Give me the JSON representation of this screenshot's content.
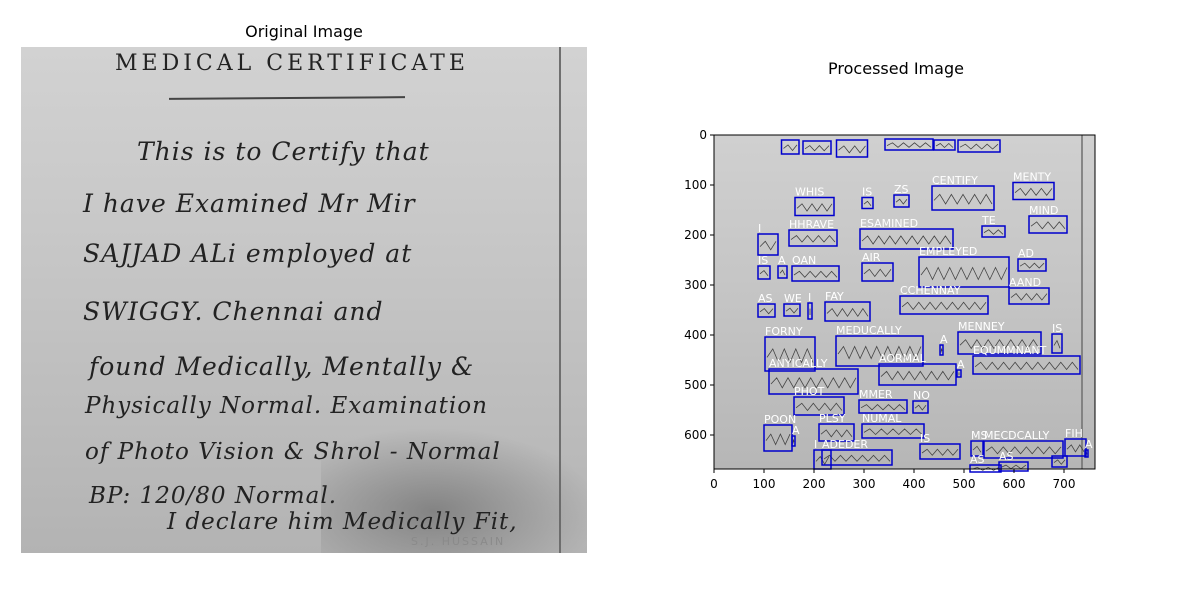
{
  "left_panel": {
    "title": "Original Image",
    "document": {
      "heading": "MEDICAL CERTIFICATE",
      "lines": [
        "This is to Certify that",
        "I have Examined Mr Mir",
        "SAJJAD ALi employed at",
        "SWIGGY. Chennai and",
        "found Medically, Mentally &",
        "Physically Normal. Examination",
        "of Photo Vision & Shrol - Normal",
        "BP: 120/80 Normal.",
        "I declare him Medically Fit,"
      ],
      "stamp": "S.J. HUSSAIN"
    }
  },
  "right_panel": {
    "title": "Processed Image",
    "x_ticks": [
      "0",
      "100",
      "200",
      "300",
      "400",
      "500",
      "600",
      "700"
    ],
    "y_ticks": [
      "0",
      "100",
      "200",
      "300",
      "400",
      "500",
      "600"
    ],
    "detections": [
      {
        "label": "",
        "x": 135,
        "y": 10,
        "w": 35,
        "h": 28
      },
      {
        "label": "",
        "x": 178,
        "y": 12,
        "w": 56,
        "h": 26
      },
      {
        "label": "",
        "x": 245,
        "y": 10,
        "w": 62,
        "h": 34
      },
      {
        "label": "",
        "x": 342,
        "y": 8,
        "w": 96,
        "h": 22
      },
      {
        "label": "",
        "x": 440,
        "y": 10,
        "w": 42,
        "h": 20
      },
      {
        "label": "",
        "x": 488,
        "y": 10,
        "w": 84,
        "h": 24
      },
      {
        "label": "WHIS",
        "x": 162,
        "y": 125,
        "w": 78,
        "h": 36
      },
      {
        "label": "IS",
        "x": 296,
        "y": 125,
        "w": 22,
        "h": 22
      },
      {
        "label": "ZS",
        "x": 360,
        "y": 120,
        "w": 30,
        "h": 24
      },
      {
        "label": "CENTIFY",
        "x": 436,
        "y": 102,
        "w": 124,
        "h": 48
      },
      {
        "label": "MENTY",
        "x": 598,
        "y": 95,
        "w": 82,
        "h": 34
      },
      {
        "label": "HHRAVE",
        "x": 150,
        "y": 190,
        "w": 96,
        "h": 32
      },
      {
        "label": "ESAMINED",
        "x": 292,
        "y": 188,
        "w": 186,
        "h": 40
      },
      {
        "label": "TE",
        "x": 536,
        "y": 182,
        "w": 46,
        "h": 22
      },
      {
        "label": "MIND",
        "x": 630,
        "y": 162,
        "w": 76,
        "h": 34
      },
      {
        "label": "I",
        "x": 88,
        "y": 198,
        "w": 40,
        "h": 42
      },
      {
        "label": "IS",
        "x": 88,
        "y": 262,
        "w": 24,
        "h": 26
      },
      {
        "label": "A",
        "x": 128,
        "y": 262,
        "w": 18,
        "h": 24
      },
      {
        "label": "OAN",
        "x": 156,
        "y": 262,
        "w": 94,
        "h": 30
      },
      {
        "label": "AIR",
        "x": 296,
        "y": 256,
        "w": 62,
        "h": 36
      },
      {
        "label": "EMPLEYED",
        "x": 410,
        "y": 244,
        "w": 180,
        "h": 60
      },
      {
        "label": "AD",
        "x": 608,
        "y": 248,
        "w": 56,
        "h": 24
      },
      {
        "label": "AS",
        "x": 88,
        "y": 338,
        "w": 34,
        "h": 26
      },
      {
        "label": "WE",
        "x": 140,
        "y": 338,
        "w": 32,
        "h": 24
      },
      {
        "label": "I",
        "x": 188,
        "y": 336,
        "w": 8,
        "h": 32
      },
      {
        "label": "FAY",
        "x": 222,
        "y": 334,
        "w": 90,
        "h": 38
      },
      {
        "label": "CCHENNAY",
        "x": 372,
        "y": 322,
        "w": 176,
        "h": 36
      },
      {
        "label": "AAND",
        "x": 590,
        "y": 306,
        "w": 80,
        "h": 32
      },
      {
        "label": "MENNEY",
        "x": 488,
        "y": 394,
        "w": 166,
        "h": 44
      },
      {
        "label": "IS",
        "x": 676,
        "y": 398,
        "w": 20,
        "h": 38
      },
      {
        "label": "FORNY",
        "x": 102,
        "y": 404,
        "w": 100,
        "h": 68
      },
      {
        "label": "MEDUCALLY",
        "x": 244,
        "y": 402,
        "w": 174,
        "h": 60
      },
      {
        "label": "A",
        "x": 452,
        "y": 420,
        "w": 6,
        "h": 20
      },
      {
        "label": "EQUMMNANT",
        "x": 518,
        "y": 442,
        "w": 214,
        "h": 36
      },
      {
        "label": "ANYICALLY",
        "x": 110,
        "y": 468,
        "w": 178,
        "h": 50
      },
      {
        "label": "AORMAL",
        "x": 330,
        "y": 458,
        "w": 154,
        "h": 42
      },
      {
        "label": "A",
        "x": 486,
        "y": 470,
        "w": 8,
        "h": 14
      },
      {
        "label": "PHOT",
        "x": 160,
        "y": 524,
        "w": 100,
        "h": 36
      },
      {
        "label": "MMER",
        "x": 290,
        "y": 530,
        "w": 96,
        "h": 26
      },
      {
        "label": "NO",
        "x": 398,
        "y": 532,
        "w": 30,
        "h": 24
      },
      {
        "label": "POON",
        "x": 100,
        "y": 580,
        "w": 56,
        "h": 52
      },
      {
        "label": "A",
        "x": 156,
        "y": 602,
        "w": 6,
        "h": 20
      },
      {
        "label": "PLSY",
        "x": 210,
        "y": 578,
        "w": 70,
        "h": 34
      },
      {
        "label": "NUMAL",
        "x": 296,
        "y": 578,
        "w": 124,
        "h": 28
      },
      {
        "label": "IS",
        "x": 412,
        "y": 618,
        "w": 80,
        "h": 30
      },
      {
        "label": "MS",
        "x": 514,
        "y": 612,
        "w": 24,
        "h": 30
      },
      {
        "label": "MECDCALLY",
        "x": 540,
        "y": 612,
        "w": 158,
        "h": 34
      },
      {
        "label": "FIH",
        "x": 702,
        "y": 608,
        "w": 42,
        "h": 34
      },
      {
        "label": "A",
        "x": 742,
        "y": 630,
        "w": 6,
        "h": 14
      },
      {
        "label": "I",
        "x": 200,
        "y": 630,
        "w": 34,
        "h": 38
      },
      {
        "label": "ADEDER",
        "x": 216,
        "y": 630,
        "w": 140,
        "h": 30
      },
      {
        "label": "AS",
        "x": 512,
        "y": 660,
        "w": 62,
        "h": 14
      },
      {
        "label": "AS",
        "x": 570,
        "y": 654,
        "w": 58,
        "h": 18
      },
      {
        "label": "",
        "x": 676,
        "y": 642,
        "w": 30,
        "h": 22
      }
    ]
  }
}
